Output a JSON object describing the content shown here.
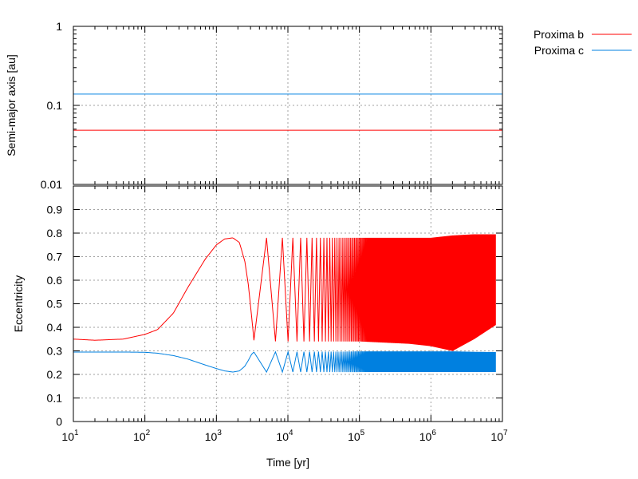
{
  "chart_data": [
    {
      "panel": "top",
      "type": "line",
      "ylabel": "Semi-major axis [au]",
      "xlog": true,
      "ylog": true,
      "xlim": [
        10,
        10000000
      ],
      "ylim": [
        0.01,
        1
      ],
      "grid": true,
      "yticks": [
        {
          "value": 0.01,
          "label": "0.01"
        },
        {
          "value": 0.1,
          "label": "0.1"
        },
        {
          "value": 1,
          "label": "1"
        }
      ],
      "series": [
        {
          "name": "Proxima b",
          "color": "#ff0000",
          "x": [
            10,
            10000000
          ],
          "y": [
            0.0485,
            0.0485
          ]
        },
        {
          "name": "Proxima c",
          "color": "#0080e0",
          "x": [
            10,
            10000000
          ],
          "y": [
            0.139,
            0.139
          ]
        }
      ]
    },
    {
      "panel": "bottom",
      "type": "line",
      "xlabel": "Time [yr]",
      "ylabel": "Eccentricity",
      "xlog": true,
      "xlim": [
        10,
        10000000
      ],
      "ylim": [
        0,
        1
      ],
      "grid": true,
      "xticks": [
        {
          "value": 10,
          "base": "10",
          "exp": "1"
        },
        {
          "value": 100,
          "base": "10",
          "exp": "2"
        },
        {
          "value": 1000,
          "base": "10",
          "exp": "3"
        },
        {
          "value": 10000,
          "base": "10",
          "exp": "4"
        },
        {
          "value": 100000,
          "base": "10",
          "exp": "5"
        },
        {
          "value": 1000000,
          "base": "10",
          "exp": "6"
        },
        {
          "value": 10000000,
          "base": "10",
          "exp": "7"
        }
      ],
      "yticks": [
        {
          "value": 0,
          "label": "0"
        },
        {
          "value": 0.1,
          "label": "0.1"
        },
        {
          "value": 0.2,
          "label": "0.2"
        },
        {
          "value": 0.3,
          "label": "0.3"
        },
        {
          "value": 0.4,
          "label": "0.4"
        },
        {
          "value": 0.5,
          "label": "0.5"
        },
        {
          "value": 0.6,
          "label": "0.6"
        },
        {
          "value": 0.7,
          "label": "0.7"
        },
        {
          "value": 0.8,
          "label": "0.8"
        },
        {
          "value": 0.9,
          "label": "0.9"
        }
      ],
      "series": [
        {
          "name": "Proxima b",
          "color": "#ff0000",
          "smooth_x": [
            10,
            20,
            50,
            100,
            150,
            250,
            400,
            700,
            1000,
            1300,
            1700,
            2100,
            2500,
            2800,
            3100,
            3350
          ],
          "smooth_y": [
            0.35,
            0.345,
            0.35,
            0.37,
            0.39,
            0.46,
            0.57,
            0.69,
            0.75,
            0.775,
            0.78,
            0.76,
            0.68,
            0.58,
            0.45,
            0.345
          ],
          "oscillation_x": [
            3350,
            7000,
            15000,
            30000,
            60000,
            100000,
            500000,
            1000000,
            2000000,
            4000000,
            8000000
          ],
          "oscillation_min": [
            0.345,
            0.34,
            0.34,
            0.34,
            0.34,
            0.34,
            0.33,
            0.32,
            0.3,
            0.35,
            0.41
          ],
          "oscillation_max": [
            0.78,
            0.78,
            0.78,
            0.78,
            0.78,
            0.78,
            0.78,
            0.78,
            0.79,
            0.795,
            0.795
          ]
        },
        {
          "name": "Proxima c",
          "color": "#0080e0",
          "smooth_x": [
            10,
            50,
            100,
            150,
            250,
            400,
            700,
            1000,
            1300,
            1700,
            2100,
            2500,
            2800,
            3100,
            3350
          ],
          "smooth_y": [
            0.295,
            0.295,
            0.294,
            0.29,
            0.28,
            0.265,
            0.24,
            0.225,
            0.215,
            0.21,
            0.215,
            0.235,
            0.26,
            0.285,
            0.295
          ],
          "oscillation_x": [
            3350,
            7000,
            15000,
            30000,
            60000,
            100000,
            500000,
            1000000,
            2000000,
            4000000,
            8000000
          ],
          "oscillation_min": [
            0.21,
            0.21,
            0.21,
            0.21,
            0.21,
            0.21,
            0.21,
            0.21,
            0.21,
            0.21,
            0.21
          ],
          "oscillation_max": [
            0.295,
            0.296,
            0.296,
            0.297,
            0.297,
            0.298,
            0.298,
            0.298,
            0.298,
            0.296,
            0.295
          ]
        }
      ]
    }
  ],
  "legend": {
    "position": "top-right-outside",
    "items": [
      {
        "name": "Proxima b",
        "color": "#ff0000"
      },
      {
        "name": "Proxima c",
        "color": "#0080e0"
      }
    ]
  }
}
